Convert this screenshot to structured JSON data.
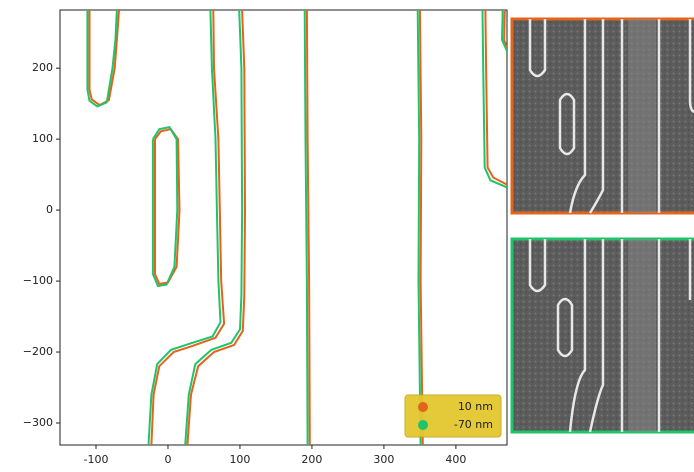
{
  "chart_data": {
    "type": "line",
    "xlim": [
      -150,
      471
    ],
    "ylim": [
      -331,
      282
    ],
    "xticks": [
      -100,
      0,
      100,
      200,
      300,
      400
    ],
    "yticks": [
      {
        "value": -300,
        "label": "−300"
      },
      {
        "value": -200,
        "label": "−200"
      },
      {
        "value": -100,
        "label": "−100"
      },
      0,
      100,
      200
    ],
    "legend": "lower right",
    "grid": false,
    "series": [
      {
        "name": "10 nm",
        "color": "#e3641c",
        "x": [
          -109,
          -109,
          -106,
          -95,
          -82,
          -74,
          -71,
          -68,
          null,
          -18,
          -18,
          -12,
          0,
          12,
          16,
          14,
          4,
          -10,
          -18,
          null,
          63,
          64,
          70,
          72,
          74,
          78,
          66,
          32,
          8,
          -12,
          -20,
          -23,
          null,
          103,
          106,
          107,
          106,
          104,
          92,
          64,
          42,
          32,
          27,
          null,
          193,
          194,
          196,
          197,
          null,
          350,
          352,
          351,
          354,
          null,
          441,
          442,
          444,
          452,
          471,
          null,
          468,
          467,
          471
        ],
        "y": [
          282,
          170,
          156,
          148,
          155,
          200,
          240,
          282,
          null,
          100,
          -90,
          -104,
          -102,
          -80,
          0,
          100,
          114,
          111,
          100,
          null,
          282,
          200,
          100,
          0,
          -100,
          -160,
          -180,
          -192,
          -200,
          -220,
          -260,
          -331,
          null,
          282,
          200,
          0,
          -120,
          -170,
          -190,
          -200,
          -220,
          -260,
          -331,
          null,
          282,
          100,
          -100,
          -331,
          null,
          282,
          100,
          -100,
          -331,
          null,
          282,
          200,
          60,
          46,
          36,
          null,
          282,
          240,
          228
        ]
      },
      {
        "name": "-70 nm",
        "color": "#1fc46a",
        "x": [
          -112,
          -112,
          -109,
          -98,
          -85,
          -77,
          -73,
          -71,
          null,
          -21,
          -21,
          -14,
          -2,
          9,
          13,
          12,
          2,
          -12,
          -21,
          null,
          59,
          61,
          66,
          68,
          70,
          73,
          62,
          28,
          4,
          -15,
          -23,
          -27,
          null,
          99,
          102,
          103,
          102,
          100,
          88,
          60,
          38,
          29,
          24,
          null,
          190,
          191,
          193,
          194,
          null,
          347,
          349,
          348,
          351,
          null,
          437,
          438,
          440,
          448,
          471,
          null,
          465,
          464,
          471
        ],
        "y": [
          282,
          170,
          154,
          146,
          152,
          200,
          240,
          282,
          null,
          100,
          -90,
          -107,
          -105,
          -80,
          0,
          100,
          117,
          114,
          100,
          null,
          282,
          200,
          100,
          0,
          -100,
          -158,
          -178,
          -189,
          -197,
          -217,
          -260,
          -331,
          null,
          282,
          200,
          0,
          -120,
          -168,
          -187,
          -197,
          -217,
          -260,
          -331,
          null,
          282,
          100,
          -100,
          -331,
          null,
          282,
          100,
          -100,
          -331,
          null,
          282,
          200,
          60,
          42,
          32,
          null,
          282,
          240,
          224
        ]
      }
    ]
  }
}
